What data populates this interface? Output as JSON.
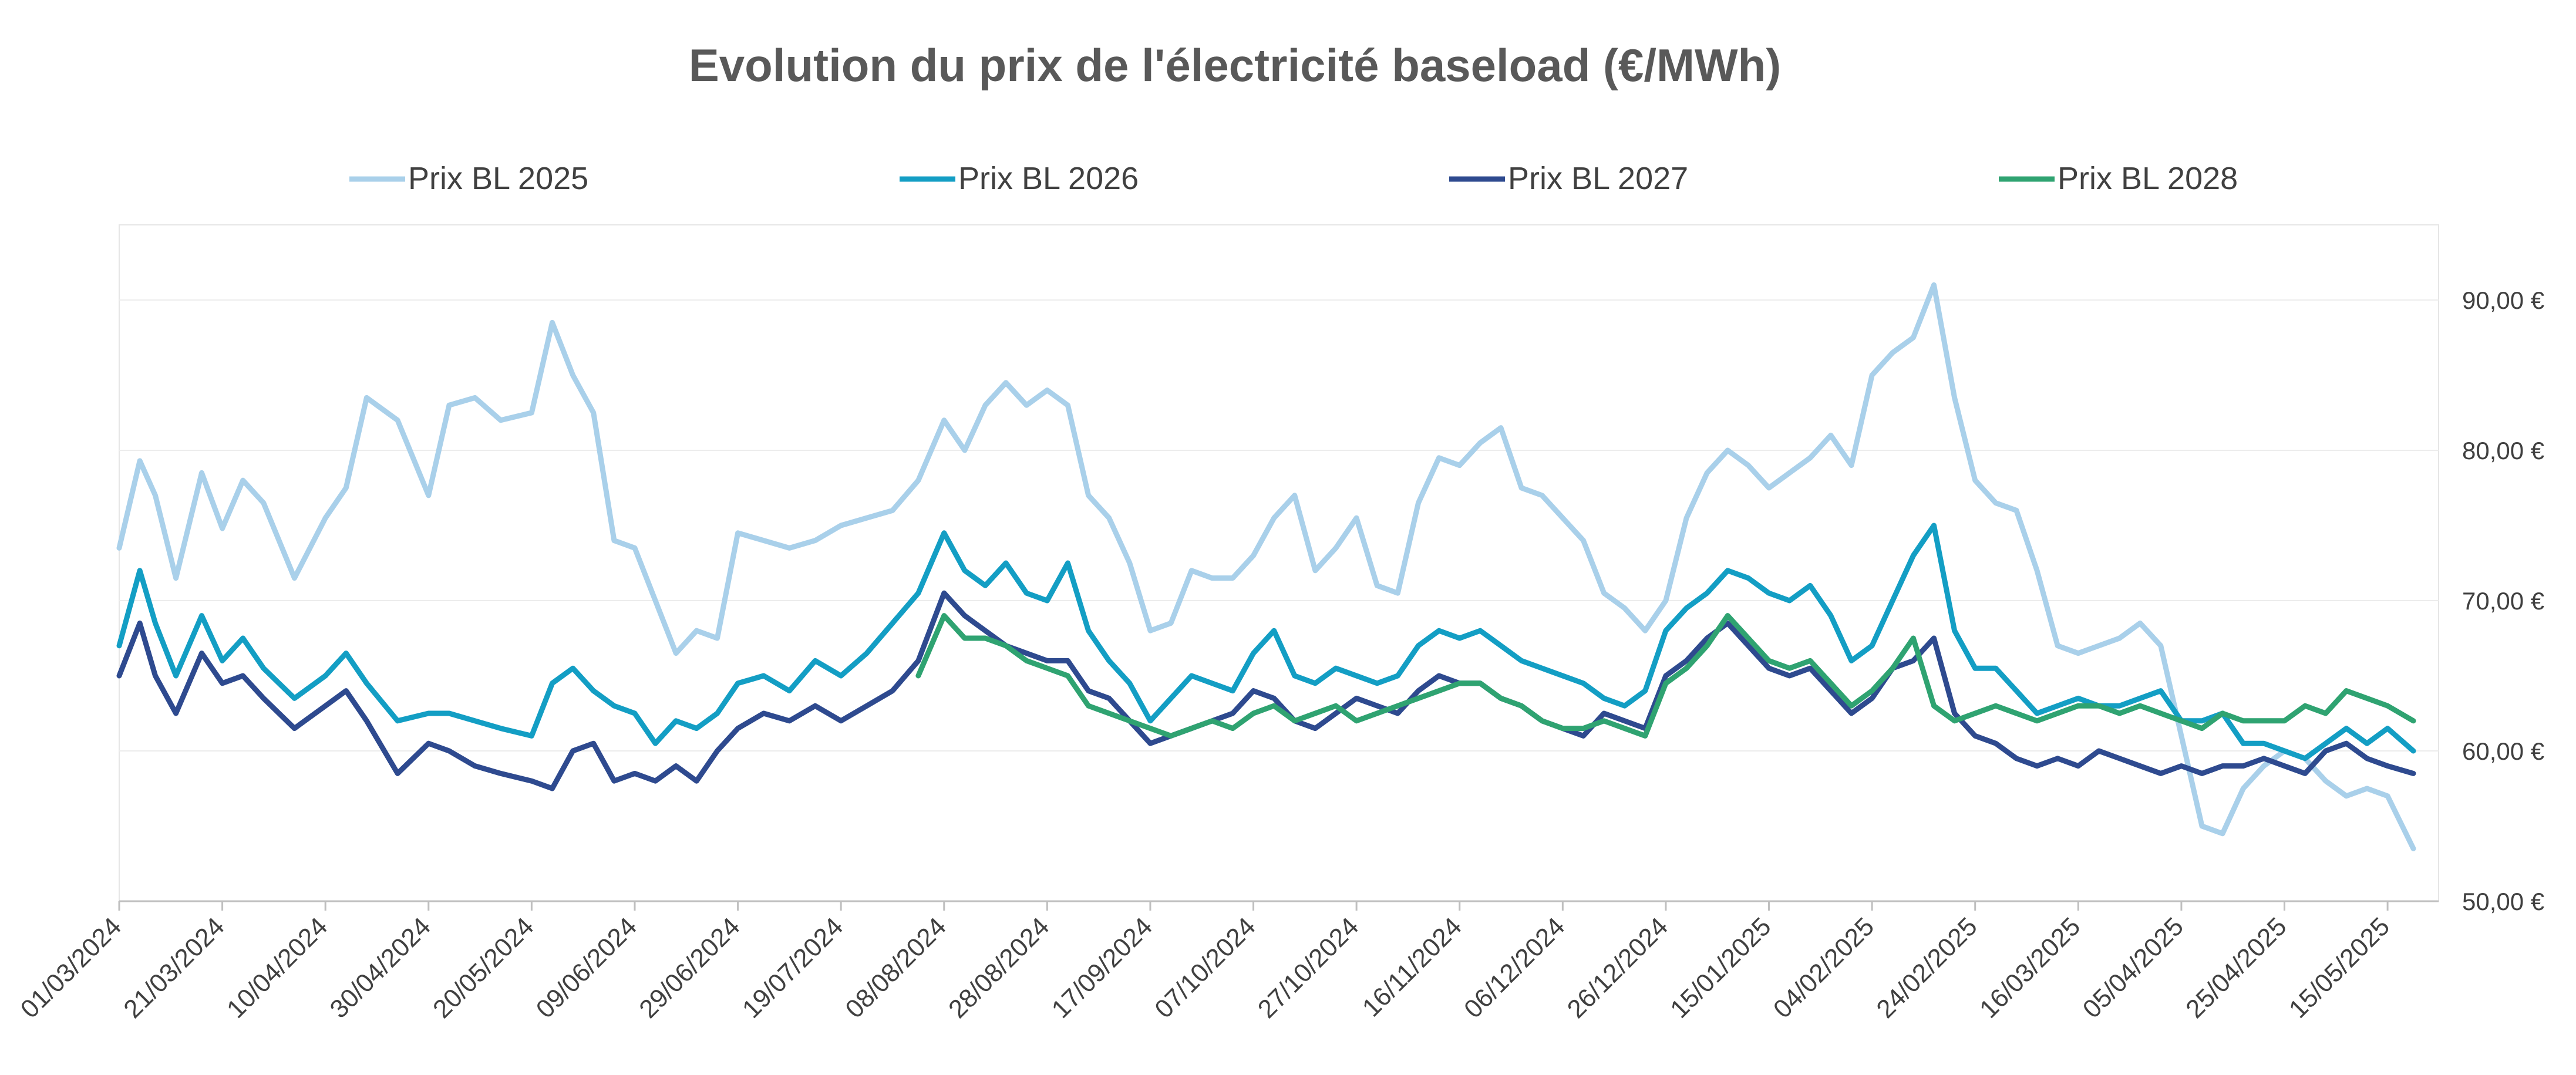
{
  "chart_data": {
    "type": "line",
    "title": "Evolution du prix de l'électricité baseload (€/MWh)",
    "xlabel": "",
    "ylabel": "",
    "ylim": [
      50,
      95
    ],
    "y_ticks": [
      {
        "value": 50,
        "label": "50,00 €"
      },
      {
        "value": 60,
        "label": "60,00 €"
      },
      {
        "value": 70,
        "label": "70,00 €"
      },
      {
        "value": 80,
        "label": "80,00 €"
      },
      {
        "value": 90,
        "label": "90,00 €"
      }
    ],
    "y_axis_position": "right",
    "grid": true,
    "legend_position": "top",
    "x_range": [
      "01/03/2024",
      "20/05/2025"
    ],
    "categories": [
      "01/03/2024",
      "21/03/2024",
      "10/04/2024",
      "30/04/2024",
      "20/05/2024",
      "09/06/2024",
      "29/06/2024",
      "19/07/2024",
      "08/08/2024",
      "28/08/2024",
      "17/09/2024",
      "07/10/2024",
      "27/10/2024",
      "16/11/2024",
      "06/12/2024",
      "26/12/2024",
      "15/01/2025",
      "04/02/2025",
      "24/02/2025",
      "16/03/2025",
      "05/04/2025",
      "25/04/2025",
      "15/05/2025"
    ],
    "series": [
      {
        "name": "Prix BL 2025",
        "color": "#a9d0ea",
        "x": [
          "01/03/2024",
          "05/03/2024",
          "08/03/2024",
          "12/03/2024",
          "17/03/2024",
          "21/03/2024",
          "25/03/2024",
          "29/03/2024",
          "04/04/2024",
          "10/04/2024",
          "14/04/2024",
          "18/04/2024",
          "24/04/2024",
          "30/04/2024",
          "04/05/2024",
          "09/05/2024",
          "14/05/2024",
          "20/05/2024",
          "24/05/2024",
          "28/05/2024",
          "01/06/2024",
          "05/06/2024",
          "09/06/2024",
          "13/06/2024",
          "17/06/2024",
          "21/06/2024",
          "25/06/2024",
          "29/06/2024",
          "04/07/2024",
          "09/07/2024",
          "14/07/2024",
          "19/07/2024",
          "24/07/2024",
          "29/07/2024",
          "03/08/2024",
          "08/08/2024",
          "12/08/2024",
          "16/08/2024",
          "20/08/2024",
          "24/08/2024",
          "28/08/2024",
          "01/09/2024",
          "05/09/2024",
          "09/09/2024",
          "13/09/2024",
          "17/09/2024",
          "21/09/2024",
          "25/09/2024",
          "29/09/2024",
          "03/10/2024",
          "07/10/2024",
          "11/10/2024",
          "15/10/2024",
          "19/10/2024",
          "23/10/2024",
          "27/10/2024",
          "31/10/2024",
          "04/11/2024",
          "08/11/2024",
          "12/11/2024",
          "16/11/2024",
          "20/11/2024",
          "24/11/2024",
          "28/11/2024",
          "02/12/2024",
          "06/12/2024",
          "10/12/2024",
          "14/12/2024",
          "18/12/2024",
          "22/12/2024",
          "26/12/2024",
          "30/12/2024",
          "03/01/2025",
          "07/01/2025",
          "11/01/2025",
          "15/01/2025",
          "19/01/2025",
          "23/01/2025",
          "27/01/2025",
          "31/01/2025",
          "04/02/2025",
          "08/02/2025",
          "12/02/2025",
          "16/02/2025",
          "20/02/2025",
          "24/02/2025",
          "28/02/2025",
          "04/03/2025",
          "08/03/2025",
          "12/03/2025",
          "16/03/2025",
          "20/03/2025",
          "24/03/2025",
          "28/03/2025",
          "01/04/2025",
          "05/04/2025",
          "09/04/2025",
          "13/04/2025",
          "17/04/2025",
          "21/04/2025",
          "25/04/2025",
          "29/04/2025",
          "03/05/2025",
          "07/05/2025",
          "11/05/2025",
          "15/05/2025",
          "20/05/2025"
        ],
        "values": [
          73.5,
          79.3,
          77.0,
          71.5,
          78.5,
          74.8,
          78.0,
          76.5,
          71.5,
          75.5,
          77.5,
          83.5,
          82.0,
          77.0,
          83.0,
          83.5,
          82.0,
          82.5,
          88.5,
          85.0,
          82.5,
          74.0,
          73.5,
          70.0,
          66.5,
          68.0,
          67.5,
          74.5,
          74.0,
          73.5,
          74.0,
          75.0,
          75.5,
          76.0,
          78.0,
          82.0,
          80.0,
          83.0,
          84.5,
          83.0,
          84.0,
          83.0,
          77.0,
          75.5,
          72.5,
          68.0,
          68.5,
          72.0,
          71.5,
          71.5,
          73.0,
          75.5,
          77.0,
          72.0,
          73.5,
          75.5,
          71.0,
          70.5,
          76.5,
          79.5,
          79.0,
          80.5,
          81.5,
          77.5,
          77.0,
          75.5,
          74.0,
          70.5,
          69.5,
          68.0,
          70.0,
          75.5,
          78.5,
          80.0,
          79.0,
          77.5,
          78.5,
          79.5,
          81.0,
          79.0,
          85.0,
          86.5,
          87.5,
          91.0,
          83.5,
          78.0,
          76.5,
          76.0,
          72.0,
          67.0,
          66.5,
          67.0,
          67.5,
          68.5,
          67.0,
          61.0,
          55.0,
          54.5,
          57.5,
          59.0,
          60.0,
          59.5,
          58.0,
          57.0,
          57.5,
          57.0,
          53.5
        ]
      },
      {
        "name": "Prix BL 2026",
        "color": "#139ec4",
        "x": [
          "01/03/2024",
          "05/03/2024",
          "08/03/2024",
          "12/03/2024",
          "17/03/2024",
          "21/03/2024",
          "25/03/2024",
          "29/03/2024",
          "04/04/2024",
          "10/04/2024",
          "14/04/2024",
          "18/04/2024",
          "24/04/2024",
          "30/04/2024",
          "04/05/2024",
          "09/05/2024",
          "14/05/2024",
          "20/05/2024",
          "24/05/2024",
          "28/05/2024",
          "01/06/2024",
          "05/06/2024",
          "09/06/2024",
          "13/06/2024",
          "17/06/2024",
          "21/06/2024",
          "25/06/2024",
          "29/06/2024",
          "04/07/2024",
          "09/07/2024",
          "14/07/2024",
          "19/07/2024",
          "24/07/2024",
          "29/07/2024",
          "03/08/2024",
          "08/08/2024",
          "12/08/2024",
          "16/08/2024",
          "20/08/2024",
          "24/08/2024",
          "28/08/2024",
          "01/09/2024",
          "05/09/2024",
          "09/09/2024",
          "13/09/2024",
          "17/09/2024",
          "21/09/2024",
          "25/09/2024",
          "29/09/2024",
          "03/10/2024",
          "07/10/2024",
          "11/10/2024",
          "15/10/2024",
          "19/10/2024",
          "23/10/2024",
          "27/10/2024",
          "31/10/2024",
          "04/11/2024",
          "08/11/2024",
          "12/11/2024",
          "16/11/2024",
          "20/11/2024",
          "24/11/2024",
          "28/11/2024",
          "02/12/2024",
          "06/12/2024",
          "10/12/2024",
          "14/12/2024",
          "18/12/2024",
          "22/12/2024",
          "26/12/2024",
          "30/12/2024",
          "03/01/2025",
          "07/01/2025",
          "11/01/2025",
          "15/01/2025",
          "19/01/2025",
          "23/01/2025",
          "27/01/2025",
          "31/01/2025",
          "04/02/2025",
          "08/02/2025",
          "12/02/2025",
          "16/02/2025",
          "20/02/2025",
          "24/02/2025",
          "28/02/2025",
          "04/03/2025",
          "08/03/2025",
          "12/03/2025",
          "16/03/2025",
          "20/03/2025",
          "24/03/2025",
          "28/03/2025",
          "01/04/2025",
          "05/04/2025",
          "09/04/2025",
          "13/04/2025",
          "17/04/2025",
          "21/04/2025",
          "25/04/2025",
          "29/04/2025",
          "03/05/2025",
          "07/05/2025",
          "11/05/2025",
          "15/05/2025",
          "20/05/2025"
        ],
        "values": [
          67.0,
          72.0,
          68.5,
          65.0,
          69.0,
          66.0,
          67.5,
          65.5,
          63.5,
          65.0,
          66.5,
          64.5,
          62.0,
          62.5,
          62.5,
          62.0,
          61.5,
          61.0,
          64.5,
          65.5,
          64.0,
          63.0,
          62.5,
          60.5,
          62.0,
          61.5,
          62.5,
          64.5,
          65.0,
          64.0,
          66.0,
          65.0,
          66.5,
          68.5,
          70.5,
          74.5,
          72.0,
          71.0,
          72.5,
          70.5,
          70.0,
          72.5,
          68.0,
          66.0,
          64.5,
          62.0,
          63.5,
          65.0,
          64.5,
          64.0,
          66.5,
          68.0,
          65.0,
          64.5,
          65.5,
          65.0,
          64.5,
          65.0,
          67.0,
          68.0,
          67.5,
          68.0,
          67.0,
          66.0,
          65.5,
          65.0,
          64.5,
          63.5,
          63.0,
          64.0,
          68.0,
          69.5,
          70.5,
          72.0,
          71.5,
          70.5,
          70.0,
          71.0,
          69.0,
          66.0,
          67.0,
          70.0,
          73.0,
          75.0,
          68.0,
          65.5,
          65.5,
          64.0,
          62.5,
          63.0,
          63.5,
          63.0,
          63.0,
          63.5,
          64.0,
          62.0,
          62.0,
          62.5,
          60.5,
          60.5,
          60.0,
          59.5,
          60.5,
          61.5,
          60.5,
          61.5,
          60.0
        ]
      },
      {
        "name": "Prix BL 2027",
        "color": "#2e4a8f",
        "x": [
          "01/03/2024",
          "05/03/2024",
          "08/03/2024",
          "12/03/2024",
          "17/03/2024",
          "21/03/2024",
          "25/03/2024",
          "29/03/2024",
          "04/04/2024",
          "10/04/2024",
          "14/04/2024",
          "18/04/2024",
          "24/04/2024",
          "30/04/2024",
          "04/05/2024",
          "09/05/2024",
          "14/05/2024",
          "20/05/2024",
          "24/05/2024",
          "28/05/2024",
          "01/06/2024",
          "05/06/2024",
          "09/06/2024",
          "13/06/2024",
          "17/06/2024",
          "21/06/2024",
          "25/06/2024",
          "29/06/2024",
          "04/07/2024",
          "09/07/2024",
          "14/07/2024",
          "19/07/2024",
          "24/07/2024",
          "29/07/2024",
          "03/08/2024",
          "08/08/2024",
          "12/08/2024",
          "16/08/2024",
          "20/08/2024",
          "24/08/2024",
          "28/08/2024",
          "01/09/2024",
          "05/09/2024",
          "09/09/2024",
          "13/09/2024",
          "17/09/2024",
          "21/09/2024",
          "25/09/2024",
          "29/09/2024",
          "03/10/2024",
          "07/10/2024",
          "11/10/2024",
          "15/10/2024",
          "19/10/2024",
          "23/10/2024",
          "27/10/2024",
          "31/10/2024",
          "04/11/2024",
          "08/11/2024",
          "12/11/2024",
          "16/11/2024",
          "20/11/2024",
          "24/11/2024",
          "28/11/2024",
          "02/12/2024",
          "06/12/2024",
          "10/12/2024",
          "14/12/2024",
          "18/12/2024",
          "22/12/2024",
          "26/12/2024",
          "30/12/2024",
          "03/01/2025",
          "07/01/2025",
          "11/01/2025",
          "15/01/2025",
          "19/01/2025",
          "23/01/2025",
          "27/01/2025",
          "31/01/2025",
          "04/02/2025",
          "08/02/2025",
          "12/02/2025",
          "16/02/2025",
          "20/02/2025",
          "24/02/2025",
          "28/02/2025",
          "04/03/2025",
          "08/03/2025",
          "12/03/2025",
          "16/03/2025",
          "20/03/2025",
          "24/03/2025",
          "28/03/2025",
          "01/04/2025",
          "05/04/2025",
          "09/04/2025",
          "13/04/2025",
          "17/04/2025",
          "21/04/2025",
          "25/04/2025",
          "29/04/2025",
          "03/05/2025",
          "07/05/2025",
          "11/05/2025",
          "15/05/2025",
          "20/05/2025"
        ],
        "values": [
          65.0,
          68.5,
          65.0,
          62.5,
          66.5,
          64.5,
          65.0,
          63.5,
          61.5,
          63.0,
          64.0,
          62.0,
          58.5,
          60.5,
          60.0,
          59.0,
          58.5,
          58.0,
          57.5,
          60.0,
          60.5,
          58.0,
          58.5,
          58.0,
          59.0,
          58.0,
          60.0,
          61.5,
          62.5,
          62.0,
          63.0,
          62.0,
          63.0,
          64.0,
          66.0,
          70.5,
          69.0,
          68.0,
          67.0,
          66.5,
          66.0,
          66.0,
          64.0,
          63.5,
          62.0,
          60.5,
          61.0,
          61.5,
          62.0,
          62.5,
          64.0,
          63.5,
          62.0,
          61.5,
          62.5,
          63.5,
          63.0,
          62.5,
          64.0,
          65.0,
          64.5,
          64.5,
          63.5,
          63.0,
          62.0,
          61.5,
          61.0,
          62.5,
          62.0,
          61.5,
          65.0,
          66.0,
          67.5,
          68.5,
          67.0,
          65.5,
          65.0,
          65.5,
          64.0,
          62.5,
          63.5,
          65.5,
          66.0,
          67.5,
          62.5,
          61.0,
          60.5,
          59.5,
          59.0,
          59.5,
          59.0,
          60.0,
          59.5,
          59.0,
          58.5,
          59.0,
          58.5,
          59.0,
          59.0,
          59.5,
          59.0,
          58.5,
          60.0,
          60.5,
          59.5,
          59.0,
          58.5
        ]
      },
      {
        "name": "Prix BL 2028",
        "color": "#2fa371",
        "x": [
          "03/08/2024",
          "08/08/2024",
          "12/08/2024",
          "16/08/2024",
          "20/08/2024",
          "24/08/2024",
          "28/08/2024",
          "01/09/2024",
          "05/09/2024",
          "09/09/2024",
          "13/09/2024",
          "17/09/2024",
          "21/09/2024",
          "25/09/2024",
          "29/09/2024",
          "03/10/2024",
          "07/10/2024",
          "11/10/2024",
          "15/10/2024",
          "19/10/2024",
          "23/10/2024",
          "27/10/2024",
          "31/10/2024",
          "04/11/2024",
          "08/11/2024",
          "12/11/2024",
          "16/11/2024",
          "20/11/2024",
          "24/11/2024",
          "28/11/2024",
          "02/12/2024",
          "06/12/2024",
          "10/12/2024",
          "14/12/2024",
          "18/12/2024",
          "22/12/2024",
          "26/12/2024",
          "30/12/2024",
          "03/01/2025",
          "07/01/2025",
          "11/01/2025",
          "15/01/2025",
          "19/01/2025",
          "23/01/2025",
          "27/01/2025",
          "31/01/2025",
          "04/02/2025",
          "08/02/2025",
          "12/02/2025",
          "16/02/2025",
          "20/02/2025",
          "24/02/2025",
          "28/02/2025",
          "04/03/2025",
          "08/03/2025",
          "12/03/2025",
          "16/03/2025",
          "20/03/2025",
          "24/03/2025",
          "28/03/2025",
          "01/04/2025",
          "05/04/2025",
          "09/04/2025",
          "13/04/2025",
          "17/04/2025",
          "21/04/2025",
          "25/04/2025",
          "29/04/2025",
          "03/05/2025",
          "07/05/2025",
          "11/05/2025",
          "15/05/2025",
          "20/05/2025"
        ],
        "values": [
          65.0,
          69.0,
          67.5,
          67.5,
          67.0,
          66.0,
          65.5,
          65.0,
          63.0,
          62.5,
          62.0,
          61.5,
          61.0,
          61.5,
          62.0,
          61.5,
          62.5,
          63.0,
          62.0,
          62.5,
          63.0,
          62.0,
          62.5,
          63.0,
          63.5,
          64.0,
          64.5,
          64.5,
          63.5,
          63.0,
          62.0,
          61.5,
          61.5,
          62.0,
          61.5,
          61.0,
          64.5,
          65.5,
          67.0,
          69.0,
          67.5,
          66.0,
          65.5,
          66.0,
          64.5,
          63.0,
          64.0,
          65.5,
          67.5,
          63.0,
          62.0,
          62.5,
          63.0,
          62.5,
          62.0,
          62.5,
          63.0,
          63.0,
          62.5,
          63.0,
          62.5,
          62.0,
          61.5,
          62.5,
          62.0,
          62.0,
          62.0,
          63.0,
          62.5,
          64.0,
          63.5,
          63.0,
          62.0
        ]
      }
    ]
  }
}
